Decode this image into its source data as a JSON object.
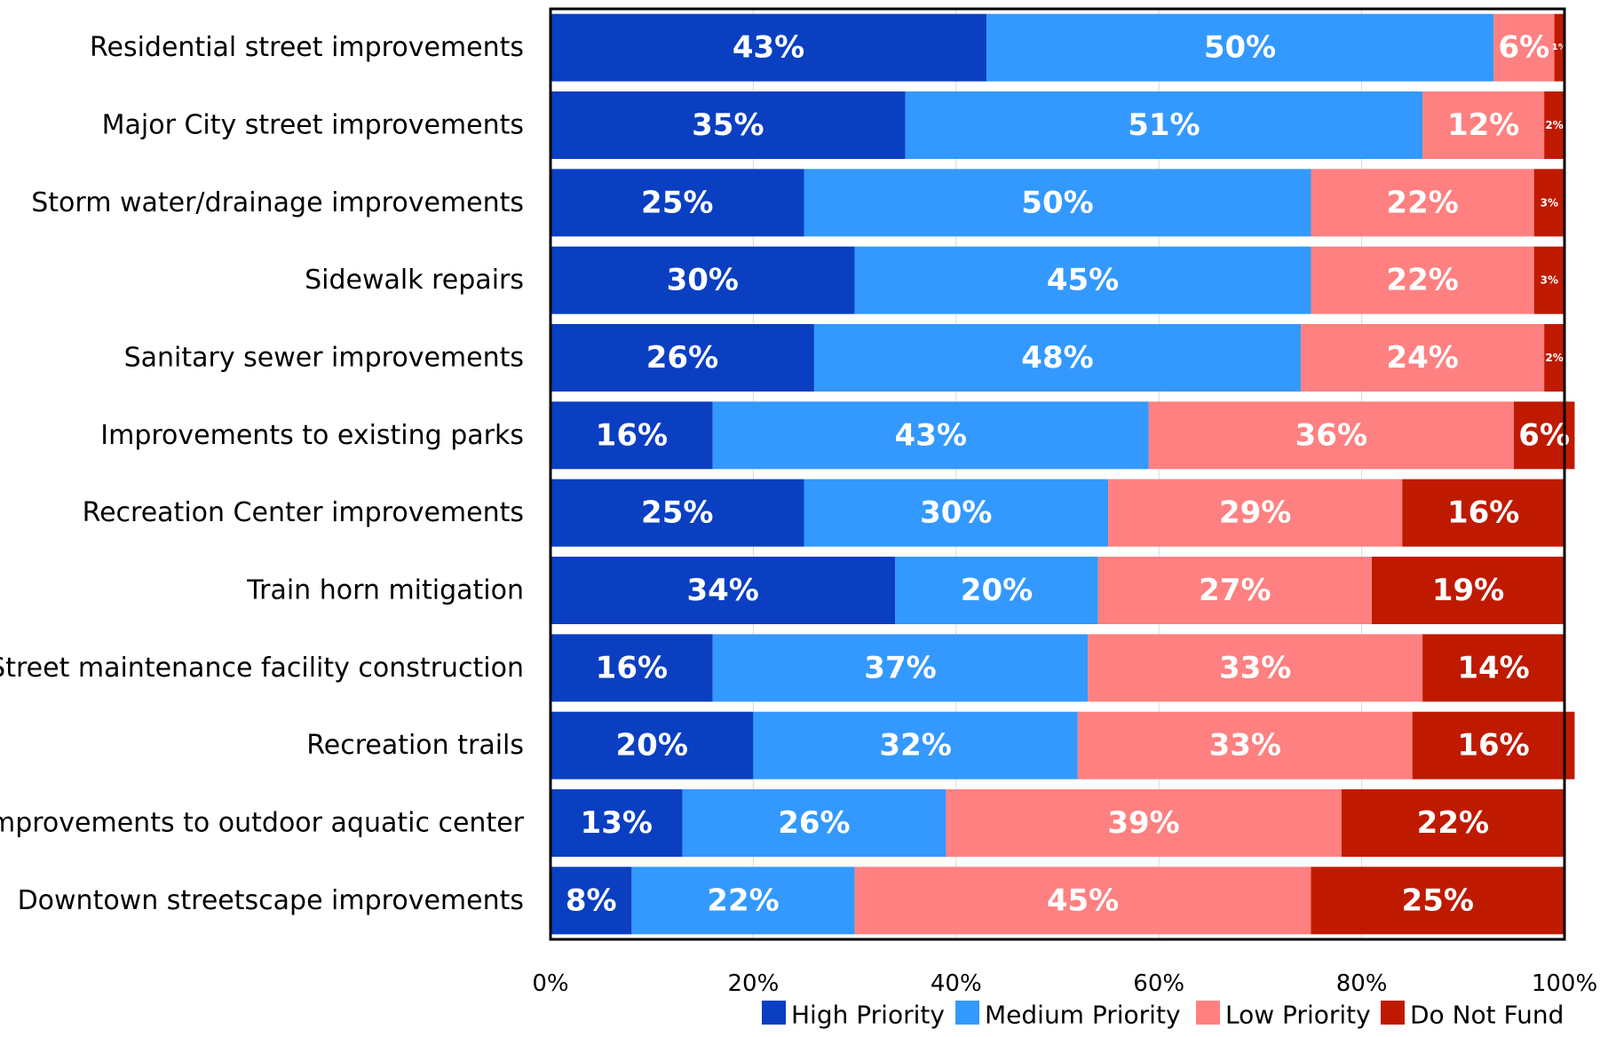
{
  "chart_data": {
    "type": "bar",
    "orientation": "horizontal",
    "stacked": true,
    "categories": [
      "Residential street improvements",
      "Major City street improvements",
      "Storm water/drainage improvements",
      "Sidewalk repairs",
      "Sanitary sewer improvements",
      "Improvements to existing parks",
      "Recreation Center improvements",
      "Train horn mitigation",
      "Street maintenance facility construction",
      "Recreation trails",
      "Improvements to outdoor aquatic center",
      "Downtown streetscape improvements"
    ],
    "series": [
      {
        "name": "High Priority",
        "color": "#0a3fc2",
        "values": [
          43,
          35,
          25,
          30,
          26,
          16,
          25,
          34,
          16,
          20,
          13,
          8
        ]
      },
      {
        "name": "Medium Priority",
        "color": "#3399ff",
        "values": [
          50,
          51,
          50,
          45,
          48,
          43,
          30,
          20,
          37,
          32,
          26,
          22
        ]
      },
      {
        "name": "Low Priority",
        "color": "#ff8080",
        "values": [
          6,
          12,
          22,
          22,
          24,
          36,
          29,
          27,
          33,
          33,
          39,
          45
        ]
      },
      {
        "name": "Do Not Fund",
        "color": "#bf1a00",
        "values": [
          1,
          2,
          3,
          3,
          2,
          6,
          16,
          19,
          14,
          16,
          22,
          25
        ]
      }
    ],
    "xlim": [
      0,
      100
    ],
    "x_ticks": [
      "0%",
      "20%",
      "40%",
      "60%",
      "80%",
      "100%"
    ],
    "value_suffix": "%",
    "legend_position": "bottom",
    "grid": true
  }
}
